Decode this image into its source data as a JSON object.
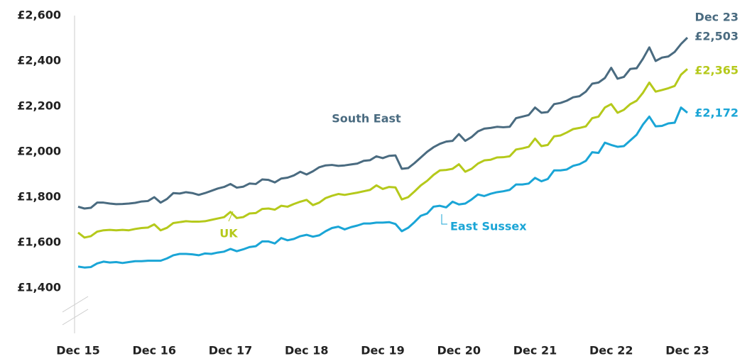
{
  "chart_data": {
    "type": "line",
    "ylim": [
      1200,
      2600
    ],
    "yticks": [
      {
        "value": 1400,
        "label": "£1,400"
      },
      {
        "value": 1600,
        "label": "£1,600"
      },
      {
        "value": 1800,
        "label": "£1,800"
      },
      {
        "value": 2000,
        "label": "£2,000"
      },
      {
        "value": 2200,
        "label": "£2,200"
      },
      {
        "value": 2400,
        "label": "£2,400"
      },
      {
        "value": 2600,
        "label": "£2,600"
      }
    ],
    "grid": false,
    "end_header": "Dec 23",
    "categories": [
      "Dec 15",
      null,
      null,
      null,
      null,
      null,
      null,
      null,
      null,
      null,
      null,
      null,
      "Dec 16",
      null,
      null,
      null,
      null,
      null,
      null,
      null,
      null,
      null,
      null,
      null,
      "Dec 17",
      null,
      null,
      null,
      null,
      null,
      null,
      null,
      null,
      null,
      null,
      null,
      "Dec 18",
      null,
      null,
      null,
      null,
      null,
      null,
      null,
      null,
      null,
      null,
      null,
      "Dec 19",
      null,
      null,
      null,
      null,
      null,
      null,
      null,
      null,
      null,
      null,
      null,
      "Dec 20",
      null,
      null,
      null,
      null,
      null,
      null,
      null,
      null,
      null,
      null,
      null,
      "Dec 21",
      null,
      null,
      null,
      null,
      null,
      null,
      null,
      null,
      null,
      null,
      null,
      "Dec 22",
      null,
      null,
      null,
      null,
      null,
      null,
      null,
      null,
      null,
      null,
      null,
      "Dec 23"
    ],
    "series": [
      {
        "name": "South East",
        "color": "#4a6b80",
        "end_label": "£2,503",
        "values": [
          1758,
          1750,
          1753,
          1776,
          1776,
          1772,
          1769,
          1770,
          1772,
          1775,
          1781,
          1783,
          1800,
          1776,
          1792,
          1818,
          1816,
          1822,
          1818,
          1810,
          1818,
          1828,
          1838,
          1845,
          1858,
          1842,
          1846,
          1860,
          1858,
          1878,
          1876,
          1865,
          1882,
          1886,
          1896,
          1912,
          1900,
          1914,
          1932,
          1940,
          1942,
          1938,
          1940,
          1944,
          1948,
          1960,
          1963,
          1980,
          1972,
          1982,
          1984,
          1925,
          1928,
          1950,
          1975,
          2000,
          2020,
          2035,
          2045,
          2048,
          2078,
          2048,
          2065,
          2090,
          2102,
          2105,
          2110,
          2108,
          2110,
          2148,
          2155,
          2162,
          2195,
          2172,
          2175,
          2210,
          2215,
          2225,
          2240,
          2245,
          2265,
          2300,
          2305,
          2325,
          2370,
          2322,
          2330,
          2365,
          2368,
          2410,
          2460,
          2400,
          2415,
          2420,
          2440,
          2475,
          2503
        ]
      },
      {
        "name": "UK",
        "color": "#b5c91b",
        "end_label": "£2,365",
        "values": [
          1644,
          1622,
          1628,
          1648,
          1654,
          1656,
          1654,
          1656,
          1654,
          1660,
          1664,
          1666,
          1680,
          1654,
          1665,
          1686,
          1690,
          1694,
          1692,
          1692,
          1694,
          1700,
          1706,
          1712,
          1735,
          1708,
          1712,
          1728,
          1730,
          1748,
          1750,
          1745,
          1762,
          1758,
          1770,
          1780,
          1788,
          1765,
          1776,
          1796,
          1806,
          1814,
          1810,
          1815,
          1820,
          1826,
          1832,
          1852,
          1836,
          1845,
          1843,
          1790,
          1800,
          1825,
          1852,
          1872,
          1898,
          1918,
          1920,
          1925,
          1945,
          1912,
          1925,
          1948,
          1962,
          1965,
          1975,
          1976,
          1980,
          2010,
          2015,
          2022,
          2058,
          2025,
          2030,
          2068,
          2072,
          2085,
          2100,
          2105,
          2112,
          2148,
          2155,
          2195,
          2210,
          2172,
          2185,
          2210,
          2225,
          2260,
          2305,
          2265,
          2272,
          2280,
          2290,
          2340,
          2365
        ]
      },
      {
        "name": "East Sussex",
        "color": "#1aa5d6",
        "end_label": "£2,172",
        "values": [
          1494,
          1490,
          1492,
          1508,
          1516,
          1512,
          1514,
          1510,
          1514,
          1518,
          1518,
          1520,
          1520,
          1520,
          1530,
          1544,
          1550,
          1550,
          1548,
          1544,
          1552,
          1550,
          1556,
          1560,
          1572,
          1562,
          1570,
          1580,
          1584,
          1605,
          1605,
          1596,
          1620,
          1610,
          1616,
          1628,
          1634,
          1626,
          1632,
          1650,
          1664,
          1670,
          1658,
          1668,
          1675,
          1684,
          1684,
          1688,
          1688,
          1690,
          1682,
          1650,
          1665,
          1690,
          1718,
          1728,
          1758,
          1762,
          1755,
          1780,
          1768,
          1772,
          1790,
          1812,
          1805,
          1815,
          1822,
          1826,
          1832,
          1856,
          1856,
          1860,
          1885,
          1870,
          1880,
          1918,
          1918,
          1922,
          1938,
          1945,
          1960,
          1998,
          1995,
          2040,
          2030,
          2022,
          2025,
          2050,
          2075,
          2120,
          2155,
          2112,
          2114,
          2125,
          2128,
          2195,
          2172
        ]
      }
    ]
  }
}
